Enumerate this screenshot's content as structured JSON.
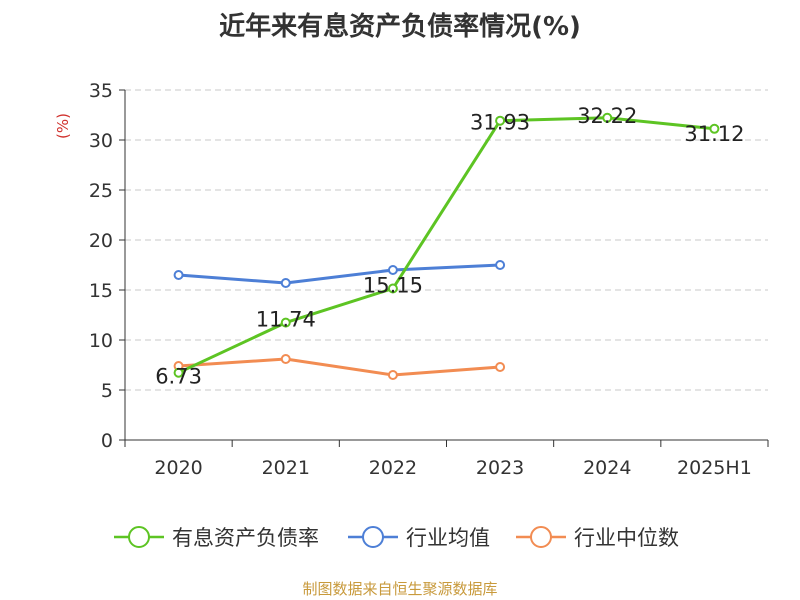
{
  "chart_data": {
    "type": "line",
    "title": "近年来有息资产负债率情况(%)",
    "ylabel": "(%)",
    "xlabel": "",
    "categories": [
      "2020",
      "2021",
      "2022",
      "2023",
      "2024",
      "2025H1"
    ],
    "ylim": [
      0,
      35
    ],
    "yticks": [
      0,
      5,
      10,
      15,
      20,
      25,
      30,
      35
    ],
    "grid": true,
    "legend_position": "bottom",
    "series": [
      {
        "name": "有息资产负债率",
        "color": "#5dc423",
        "values": [
          6.73,
          11.74,
          15.15,
          31.93,
          32.22,
          31.12
        ],
        "labels": [
          "6.73",
          "11.74",
          "15.15",
          "31.93",
          "32.22",
          "31.12"
        ]
      },
      {
        "name": "行业均值",
        "color": "#4d7fd6",
        "values": [
          16.5,
          15.7,
          17.0,
          17.5,
          null,
          null
        ]
      },
      {
        "name": "行业中位数",
        "color": "#f28c52",
        "values": [
          7.4,
          8.1,
          6.5,
          7.3,
          null,
          null
        ]
      }
    ]
  },
  "source_note": "制图数据来自恒生聚源数据库"
}
